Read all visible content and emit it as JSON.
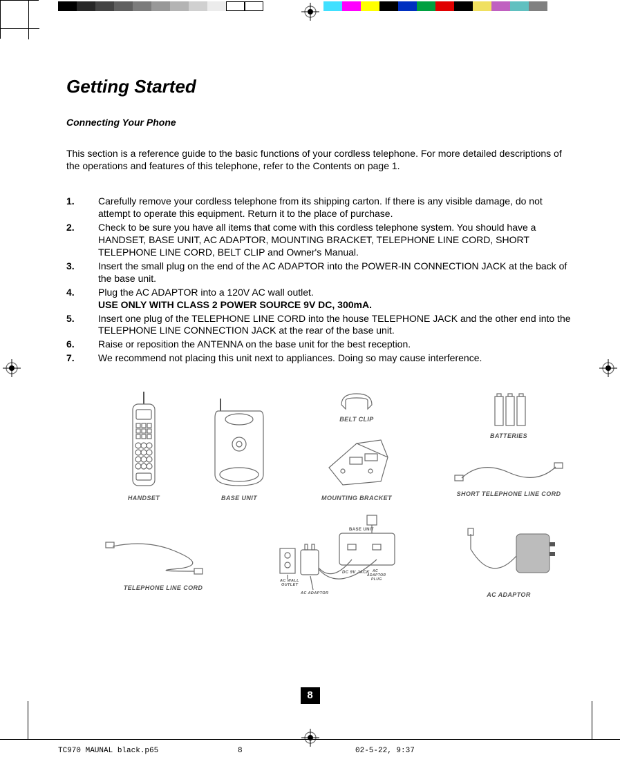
{
  "colorbar_left": [
    "#000000",
    "#282828",
    "#444444",
    "#606060",
    "#7c7c7c",
    "#989898",
    "#b4b4b4",
    "#d0d0d0",
    "#ececec",
    "#ffffff",
    "#ffffff"
  ],
  "colorbar_right": [
    "#40e0ff",
    "#ff00ff",
    "#ffff00",
    "#000000",
    "#0030c0",
    "#00a040",
    "#e00000",
    "#000000",
    "#f0e060",
    "#c060c0",
    "#60c0c0",
    "#808080"
  ],
  "title": "Getting Started",
  "subtitle": "Connecting Your Phone",
  "intro": "This section is a reference guide to the basic functions of your cordless telephone. For more detailed descriptions of the operations and features of this telephone, refer to the Contents on page 1.",
  "steps": [
    {
      "n": "1.",
      "text": "Carefully remove your cordless telephone from its shipping carton. If there is any visible damage, do not attempt to operate this equipment. Return it to the place of purchase."
    },
    {
      "n": "2.",
      "text": "Check to be sure you have all items that come with this cordless telephone system. You should have a HANDSET, BASE UNIT, AC ADAPTOR, MOUNTING BRACKET, TELEPHONE LINE CORD, SHORT TELEPHONE LINE CORD, BELT CLIP and Owner's Manual."
    },
    {
      "n": "3.",
      "text": "Insert  the small plug on the end of the AC ADAPTOR into the POWER-IN CONNECTION JACK at the back of the base unit."
    },
    {
      "n": "4.",
      "text": "Plug the AC ADAPTOR into  a 120V AC wall outlet.",
      "bold": "USE ONLY WITH CLASS 2 POWER SOURCE 9V DC, 300mA."
    },
    {
      "n": "5.",
      "text": "Insert one plug of the TELEPHONE LINE CORD into the house TELEPHONE JACK and the other end into the TELEPHONE LINE CONNECTION JACK  at the rear of the base unit."
    },
    {
      "n": "6.",
      "text": "Raise or reposition the ANTENNA on the base unit for the best reception."
    },
    {
      "n": "7.",
      "text": "We recommend not placing this unit next to appliances. Doing so may cause interference."
    }
  ],
  "labels": {
    "handset": "HANDSET",
    "base_unit": "BASE UNIT",
    "belt_clip": "BELT CLIP",
    "mounting_bracket": "MOUNTING BRACKET",
    "batteries": "BATTERIES",
    "short_cord": "SHORT TELEPHONE LINE CORD",
    "tel_cord": "TELEPHONE LINE CORD",
    "ac_adaptor": "AC ADAPTOR",
    "diag_base": "BASE UNIT",
    "diag_dc": "DC 9V JACK",
    "diag_plug": "AC ADAPTOR PLUG",
    "diag_wall": "AC WALL OUTLET",
    "diag_adaptor": "AC ADAPTOR"
  },
  "page_number": "8",
  "footer": {
    "filename": "TC970 MAUNAL black.p65",
    "page": "8",
    "date": "02-5-22, 9:37"
  }
}
